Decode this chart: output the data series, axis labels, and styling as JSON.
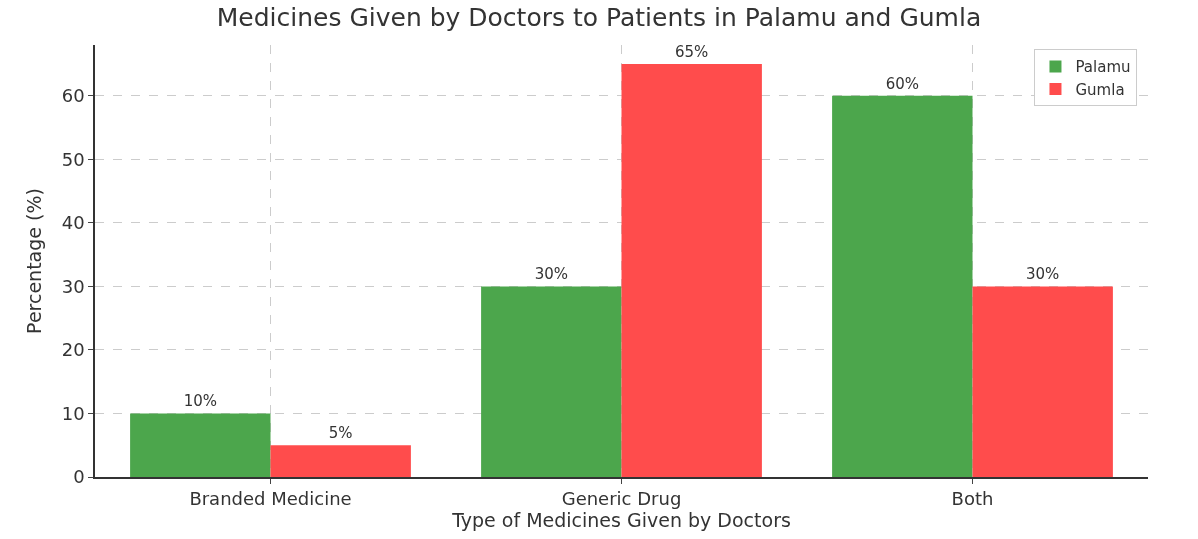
{
  "chart_data": {
    "type": "bar",
    "title": "Medicines Given by Doctors to Patients in Palamu and Gumla",
    "xlabel": "Type of Medicines Given by Doctors",
    "ylabel": "Percentage (%)",
    "categories": [
      "Branded Medicine",
      "Generic Drug",
      "Both"
    ],
    "series": [
      {
        "name": "Palamu",
        "color": "#4ca64c",
        "values": [
          10,
          30,
          60
        ],
        "value_labels": [
          "10%",
          "30%",
          "60%"
        ]
      },
      {
        "name": "Gumla",
        "color": "#ff4c4c",
        "values": [
          5,
          65,
          30
        ],
        "value_labels": [
          "5%",
          "65%",
          "30%"
        ]
      }
    ],
    "ylim": [
      0,
      68
    ],
    "yticks": [
      0,
      10,
      20,
      30,
      40,
      50,
      60
    ],
    "grid": true,
    "legend": "top right"
  }
}
